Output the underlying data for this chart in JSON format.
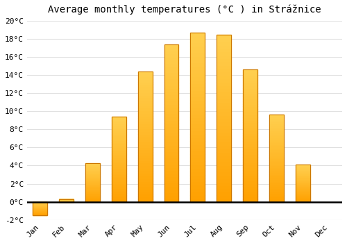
{
  "title": "Average monthly temperatures (°C ) in Strážnice",
  "months": [
    "Jan",
    "Feb",
    "Mar",
    "Apr",
    "May",
    "Jun",
    "Jul",
    "Aug",
    "Sep",
    "Oct",
    "Nov",
    "Dec"
  ],
  "values": [
    -1.5,
    0.3,
    4.3,
    9.4,
    14.4,
    17.4,
    18.7,
    18.4,
    14.6,
    9.6,
    4.1,
    0.0
  ],
  "bar_color": "#FFA500",
  "bar_edge_color": "#CC7700",
  "ylim": [
    -2,
    20
  ],
  "yticks": [
    -2,
    0,
    2,
    4,
    6,
    8,
    10,
    12,
    14,
    16,
    18,
    20
  ],
  "ytick_labels": [
    "-2°C",
    "0°C",
    "2°C",
    "4°C",
    "6°C",
    "8°C",
    "10°C",
    "12°C",
    "14°C",
    "16°C",
    "18°C",
    "20°C"
  ],
  "background_color": "#ffffff",
  "grid_color": "#e0e0e0",
  "zero_line_color": "#000000",
  "title_fontsize": 10,
  "tick_fontsize": 8,
  "bar_width": 0.55
}
